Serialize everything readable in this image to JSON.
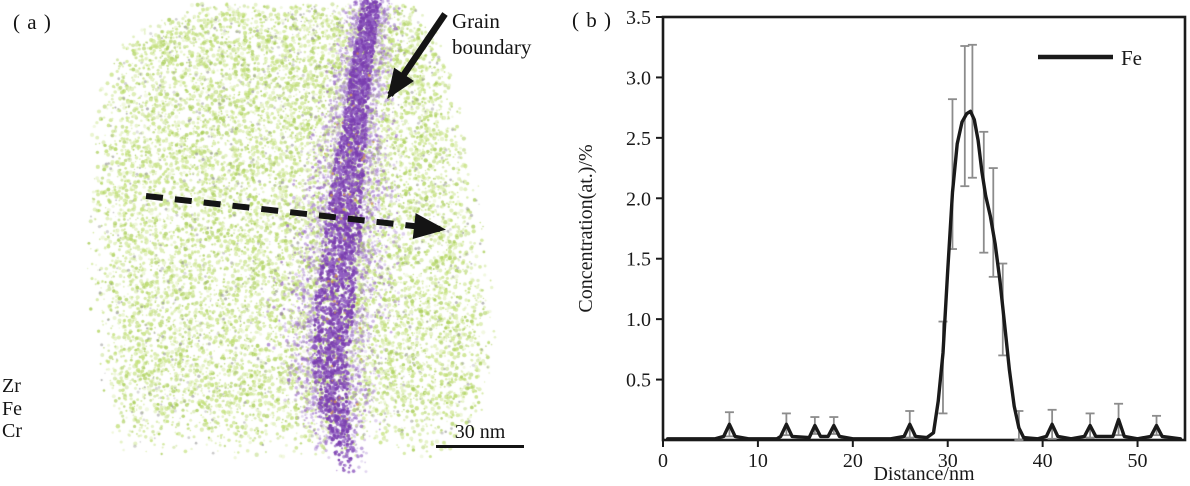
{
  "panel_a": {
    "label": "( a )",
    "annotations": {
      "grain_boundary": "Grain\nboundary",
      "scale_bar": "30 nm",
      "element_labels": [
        "Zr",
        "Fe",
        "Cr"
      ]
    },
    "colors": {
      "matrix_green": "#c3e07c",
      "matrix_green_light": "#dcedb2",
      "matrix_green_dark": "#a9cd58",
      "boundary_purple_core": "#7b3fb0",
      "boundary_purple_mid": "#9361c3",
      "boundary_purple_fringe": "#b495d8",
      "noise_gray": "#9b9b9b",
      "speck_orange": "#d29a4a",
      "annotation_black": "#141414"
    }
  },
  "panel_b": {
    "label": "( b )"
  },
  "chart_data": {
    "type": "line",
    "title": "",
    "xlabel": "Distance/nm",
    "ylabel": "Concentration(at.)/%",
    "xlim": [
      0,
      55
    ],
    "ylim": [
      0,
      3.5
    ],
    "xticks": [
      0,
      10,
      20,
      30,
      40,
      50
    ],
    "yticks": [
      0.5,
      1.0,
      1.5,
      2.0,
      2.5,
      3.0,
      3.5
    ],
    "grid": false,
    "legend_position": "top-right",
    "axis_color": "#1a1a1a",
    "line_color": "#1a1a1a",
    "error_bar_color": "#8c8c8c",
    "legend": [
      {
        "label": "Fe",
        "color": "#1a1a1a"
      }
    ],
    "series": [
      {
        "name": "Fe",
        "points": [
          [
            0.5,
            0.01
          ],
          [
            3,
            0.01
          ],
          [
            5.5,
            0.01
          ],
          [
            6.4,
            0.03
          ],
          [
            7,
            0.13
          ],
          [
            7.6,
            0.03
          ],
          [
            9,
            0.01
          ],
          [
            12,
            0.01
          ],
          [
            12.4,
            0.03
          ],
          [
            13,
            0.13
          ],
          [
            13.6,
            0.03
          ],
          [
            15.4,
            0.02
          ],
          [
            16,
            0.12
          ],
          [
            16.6,
            0.03
          ],
          [
            17.4,
            0.03
          ],
          [
            18,
            0.12
          ],
          [
            18.6,
            0.03
          ],
          [
            20,
            0.01
          ],
          [
            24,
            0.01
          ],
          [
            25.4,
            0.03
          ],
          [
            26,
            0.13
          ],
          [
            26.6,
            0.03
          ],
          [
            27.8,
            0.02
          ],
          [
            28.5,
            0.06
          ],
          [
            29,
            0.32
          ],
          [
            29.5,
            0.72
          ],
          [
            30,
            1.4
          ],
          [
            30.5,
            2.05
          ],
          [
            31,
            2.45
          ],
          [
            31.5,
            2.63
          ],
          [
            32,
            2.7
          ],
          [
            32.4,
            2.72
          ],
          [
            32.8,
            2.65
          ],
          [
            33.2,
            2.48
          ],
          [
            33.6,
            2.22
          ],
          [
            34,
            2.02
          ],
          [
            34.5,
            1.85
          ],
          [
            35,
            1.62
          ],
          [
            35.5,
            1.32
          ],
          [
            36,
            0.95
          ],
          [
            36.5,
            0.58
          ],
          [
            37,
            0.28
          ],
          [
            37.5,
            0.1
          ],
          [
            38,
            0.02
          ],
          [
            39.5,
            0.01
          ],
          [
            40.4,
            0.03
          ],
          [
            41,
            0.13
          ],
          [
            41.6,
            0.03
          ],
          [
            43,
            0.01
          ],
          [
            44.4,
            0.03
          ],
          [
            45,
            0.12
          ],
          [
            45.6,
            0.03
          ],
          [
            47.4,
            0.03
          ],
          [
            48,
            0.17
          ],
          [
            48.6,
            0.03
          ],
          [
            50,
            0.01
          ],
          [
            51.4,
            0.03
          ],
          [
            52,
            0.12
          ],
          [
            52.6,
            0.03
          ],
          [
            54.5,
            0.01
          ]
        ]
      }
    ],
    "error_bars": [
      [
        7,
        0.13,
        0.1
      ],
      [
        13,
        0.13,
        0.09
      ],
      [
        16,
        0.12,
        0.07
      ],
      [
        18,
        0.12,
        0.07
      ],
      [
        26,
        0.13,
        0.11
      ],
      [
        29.5,
        0.6,
        0.38
      ],
      [
        30.5,
        2.2,
        0.62
      ],
      [
        31.8,
        2.68,
        0.58
      ],
      [
        32.6,
        2.72,
        0.55
      ],
      [
        33.8,
        2.05,
        0.5
      ],
      [
        34.8,
        1.8,
        0.45
      ],
      [
        35.8,
        1.08,
        0.38
      ],
      [
        37.5,
        0.1,
        0.14
      ],
      [
        41,
        0.13,
        0.12
      ],
      [
        45,
        0.12,
        0.1
      ],
      [
        48,
        0.17,
        0.13
      ],
      [
        52,
        0.12,
        0.08
      ]
    ]
  }
}
